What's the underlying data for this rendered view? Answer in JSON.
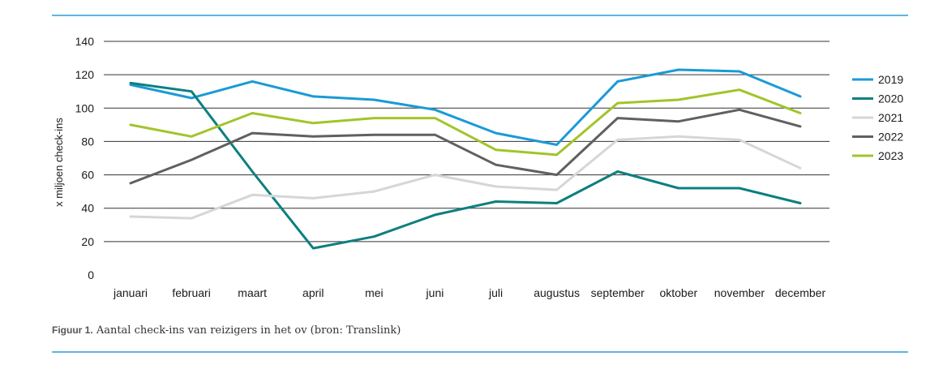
{
  "caption": {
    "figure_label": "Figuur 1.",
    "text": "Aantal check-ins van reizigers in het ov (bron: Translink)"
  },
  "chart_data": {
    "type": "line",
    "title": "",
    "xlabel": "",
    "ylabel": "x miljoen check-ins",
    "ylim": [
      0,
      140
    ],
    "yticks": [
      0,
      20,
      40,
      60,
      80,
      100,
      120,
      140
    ],
    "grid": true,
    "legend_position": "right",
    "categories": [
      "januari",
      "februari",
      "maart",
      "april",
      "mei",
      "juni",
      "juli",
      "augustus",
      "september",
      "oktober",
      "november",
      "december"
    ],
    "series": [
      {
        "name": "2019",
        "color": "#1a9ad6",
        "values": [
          114,
          106,
          116,
          107,
          105,
          99,
          85,
          78,
          116,
          123,
          122,
          107
        ]
      },
      {
        "name": "2020",
        "color": "#0e7f7f",
        "values": [
          115,
          110,
          62,
          16,
          23,
          36,
          44,
          43,
          62,
          52,
          52,
          43
        ]
      },
      {
        "name": "2021",
        "color": "#d6d6d6",
        "values": [
          35,
          34,
          48,
          46,
          50,
          60,
          53,
          51,
          81,
          83,
          81,
          64
        ]
      },
      {
        "name": "2022",
        "color": "#606060",
        "values": [
          55,
          69,
          85,
          83,
          84,
          84,
          66,
          60,
          94,
          92,
          99,
          89
        ]
      },
      {
        "name": "2023",
        "color": "#a2c42a",
        "values": [
          90,
          83,
          97,
          91,
          94,
          94,
          75,
          72,
          103,
          105,
          111,
          97
        ]
      }
    ]
  }
}
